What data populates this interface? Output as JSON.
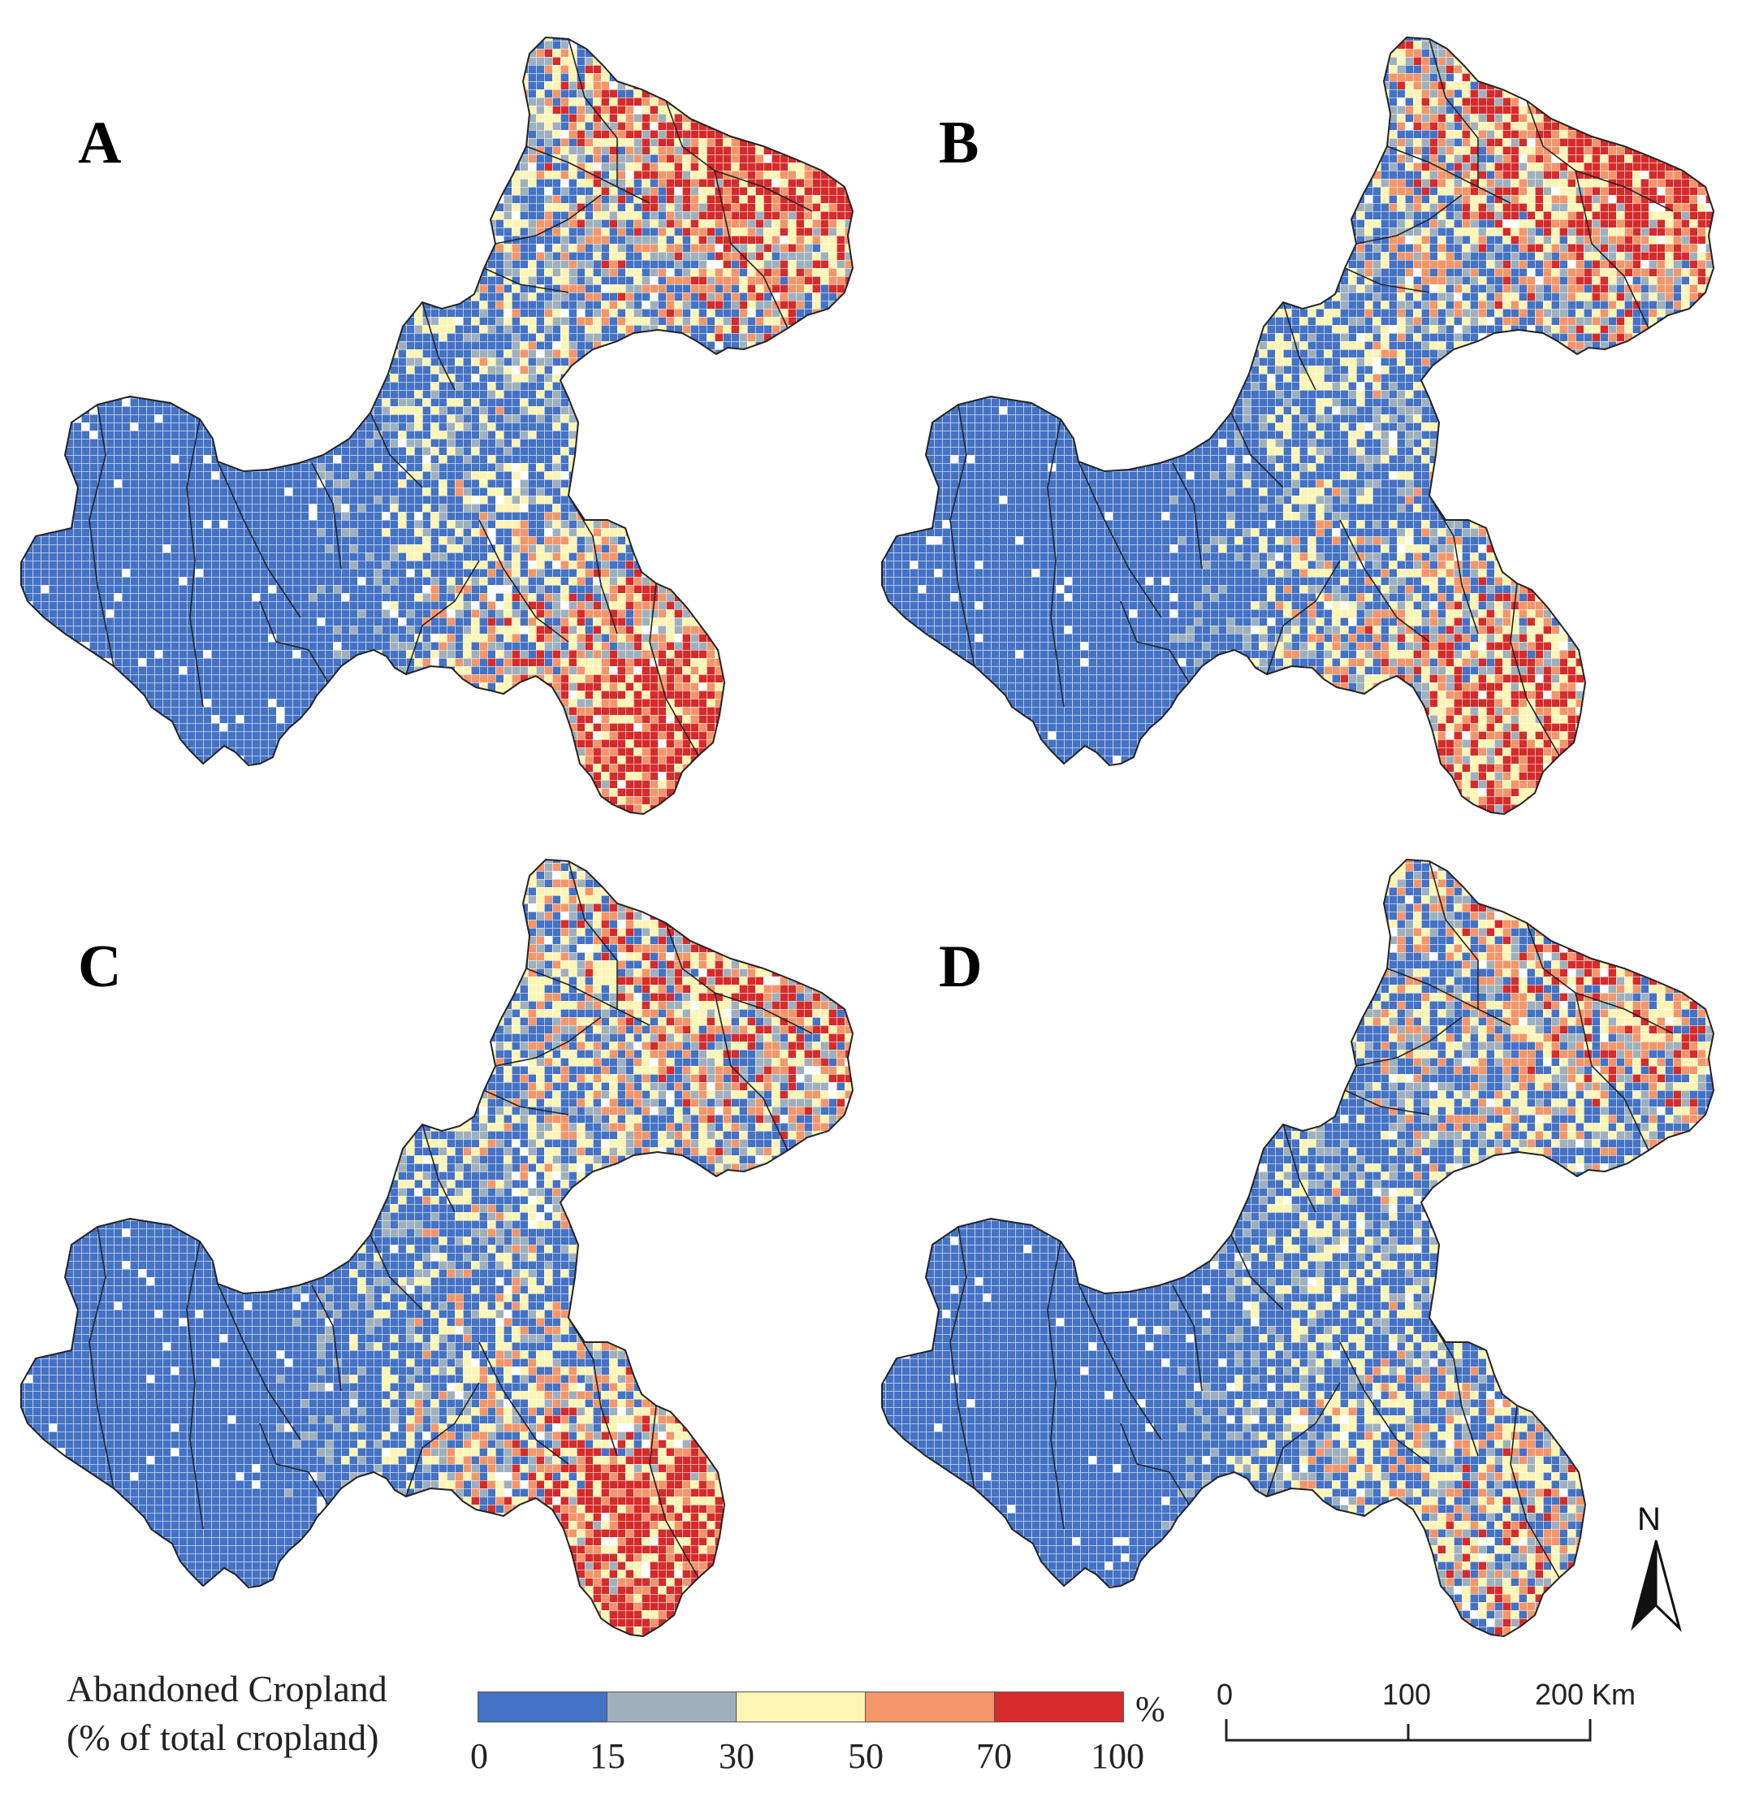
{
  "panels": [
    {
      "label": "A",
      "scenario": "a"
    },
    {
      "label": "B",
      "scenario": "b"
    },
    {
      "label": "C",
      "scenario": "c"
    },
    {
      "label": "D",
      "scenario": "d"
    }
  ],
  "legend": {
    "title_line1": "Abandoned Cropland",
    "title_line2": "(% of total cropland)",
    "unit": "%",
    "breaks": [
      "0",
      "15",
      "30",
      "50",
      "70",
      "100"
    ],
    "classes": [
      {
        "range": "0-15",
        "color": "#4472c4"
      },
      {
        "range": "15-30",
        "color": "#9fb0bd"
      },
      {
        "range": "30-50",
        "color": "#fdf5b4"
      },
      {
        "range": "50-70",
        "color": "#f4956a"
      },
      {
        "range": "70-100",
        "color": "#d62b2b"
      }
    ]
  },
  "scale_bar": {
    "labels": [
      "0",
      "100",
      "200 Km"
    ]
  },
  "north_arrow": {
    "label": "N"
  },
  "colors": {
    "boundary": "#222222",
    "grid": "#ffffff",
    "no_data": "#ffffff"
  }
}
